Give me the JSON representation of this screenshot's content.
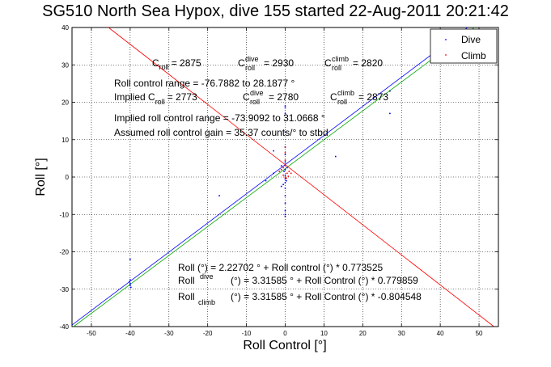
{
  "chart_data": {
    "type": "scatter",
    "title": "SG510 North Sea Hypox, dive 155 started 22-Aug-2011 20:21:42",
    "xlabel": "Roll Control [°]",
    "ylabel": "Roll [°]",
    "xlim": [
      -55,
      55
    ],
    "ylim": [
      -40,
      40
    ],
    "xticks": [
      -50,
      -40,
      -30,
      -20,
      -10,
      0,
      10,
      20,
      30,
      40,
      50
    ],
    "yticks": [
      -40,
      -30,
      -20,
      -10,
      0,
      10,
      20,
      30,
      40
    ],
    "grid": true,
    "legend_position": "top-right",
    "series": [
      {
        "name": "Dive",
        "color": "#0000ff",
        "points": [
          [
            -40,
            -27.5
          ],
          [
            -40,
            -28.5
          ],
          [
            -40,
            -29
          ],
          [
            -40.2,
            -28
          ],
          [
            -39.8,
            -29.5
          ],
          [
            -40,
            -22
          ],
          [
            -17,
            -5
          ],
          [
            -5,
            -1
          ],
          [
            -3,
            1
          ],
          [
            -1,
            3
          ],
          [
            0,
            17
          ],
          [
            0,
            18.5
          ],
          [
            0,
            19
          ],
          [
            0,
            12
          ],
          [
            0,
            8
          ],
          [
            0,
            6
          ],
          [
            0,
            4
          ],
          [
            0,
            2
          ],
          [
            0,
            0.5
          ],
          [
            0,
            -0.5
          ],
          [
            0,
            -1.5
          ],
          [
            0,
            -3
          ],
          [
            0,
            -5
          ],
          [
            0,
            -7
          ],
          [
            0,
            -9
          ],
          [
            0,
            -10
          ],
          [
            0,
            -10.5
          ],
          [
            -0.5,
            -2
          ],
          [
            0.5,
            2.5
          ],
          [
            -0.3,
            1.5
          ],
          [
            0.3,
            -1
          ],
          [
            27,
            17
          ],
          [
            27,
            23
          ],
          [
            13,
            5.5
          ],
          [
            -3,
            7
          ],
          [
            -1,
            -2.5
          ]
        ]
      },
      {
        "name": "Climb",
        "color": "#ff0000",
        "points": [
          [
            0,
            0
          ],
          [
            0.5,
            1
          ],
          [
            -0.5,
            0.5
          ],
          [
            0.3,
            -0.3
          ],
          [
            1,
            1.5
          ],
          [
            -1,
            2
          ],
          [
            0,
            3
          ],
          [
            0,
            4.5
          ],
          [
            0,
            6.5
          ],
          [
            0,
            8
          ],
          [
            -0.5,
            2.5
          ],
          [
            0.8,
            0.2
          ],
          [
            1.5,
            1
          ],
          [
            -1.5,
            1.5
          ]
        ]
      }
    ],
    "lines": [
      {
        "label": "Roll",
        "intercept": 2.22702,
        "slope": 0.773525,
        "color": "#00aa00"
      },
      {
        "label": "Roll dive",
        "intercept": 3.31585,
        "slope": 0.779859,
        "color": "#0000ff"
      },
      {
        "label": "Roll climb",
        "intercept": 3.31585,
        "slope": -0.804548,
        "color": "#ff0000"
      }
    ]
  },
  "legend": {
    "dive_label": "Dive",
    "climb_label": "Climb"
  },
  "annotations": {
    "line1": {
      "c_roll": "C",
      "roll_sub": "roll",
      "c_roll_val": "= 2875",
      "c_dive": "C",
      "dive_sup": "dive",
      "dive_sub": "roll",
      "c_dive_val": "= 2930",
      "c_climb": "C",
      "climb_sup": "climb",
      "climb_sub": "roll",
      "c_climb_val": "= 2820"
    },
    "line2": "Roll control range = -76.7882 to 28.1877 °",
    "line3": {
      "prefix": "Implied C",
      "roll_sub": "roll",
      "val": "= 2773",
      "c_dive": "C",
      "dive_sup": "dive",
      "dive_sub": "roll",
      "c_dive_val": "= 2780",
      "c_climb": "C",
      "climb_sup": "climb",
      "climb_sub": "roll",
      "c_climb_val": "= 2873"
    },
    "line4": "Implied roll control range = -73.9092 to 31.0668 °",
    "line5": "Assumed roll control gain = 35.37 counts/° to stbd",
    "fit1": "Roll (°) = 2.22702 ° + Roll control (°) * 0.773525",
    "fit2_prefix": "Roll",
    "fit2_sub": "dive",
    "fit2_rest": "(°) = 3.31585 ° + Roll Control (°) * 0.779859",
    "fit3_prefix": "Roll",
    "fit3_sub": "climb",
    "fit3_rest": "(°) = 3.31585 ° + Roll Control (°) * -0.804548"
  }
}
